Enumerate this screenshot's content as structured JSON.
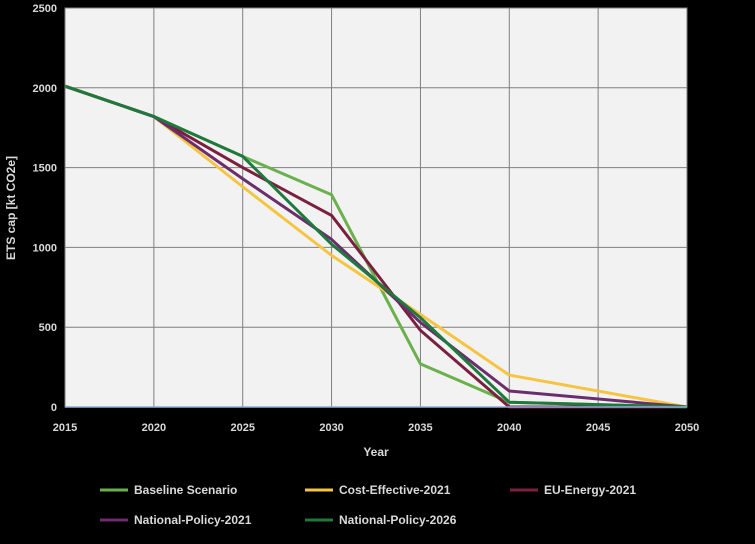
{
  "chart_data": {
    "type": "line",
    "title": "",
    "xlabel": "Year",
    "ylabel": "ETS cap [kt CO2e]",
    "x": [
      2015,
      2020,
      2025,
      2030,
      2035,
      2040,
      2045,
      2050
    ],
    "xlim": [
      2015,
      2050
    ],
    "ylim": [
      0,
      2500
    ],
    "x_ticks": [
      2015,
      2020,
      2025,
      2030,
      2035,
      2040,
      2045,
      2050
    ],
    "y_ticks": [
      0,
      500,
      1000,
      1500,
      2000,
      2500
    ],
    "grid": true,
    "legend_position": "bottom",
    "series": [
      {
        "name": "Baseline Scenario",
        "color": "#6ab04c",
        "x": [
          2015,
          2020,
          2025,
          2030,
          2035,
          2040,
          2050
        ],
        "values": [
          2010,
          1820,
          1570,
          1330,
          270,
          30,
          0
        ]
      },
      {
        "name": "Cost-Effective-2021",
        "color": "#f5c542",
        "x": [
          2015,
          2020,
          2025,
          2030,
          2035,
          2040,
          2050
        ],
        "values": [
          2010,
          1820,
          1380,
          950,
          580,
          200,
          0
        ]
      },
      {
        "name": "EU-Energy-2021",
        "color": "#7b1f3f",
        "x": [
          2015,
          2020,
          2025,
          2030,
          2035,
          2040,
          2050
        ],
        "values": [
          2010,
          1820,
          1500,
          1200,
          480,
          0,
          0
        ]
      },
      {
        "name": "National-Policy-2021",
        "color": "#6b2d6b",
        "x": [
          2015,
          2020,
          2025,
          2030,
          2035,
          2040,
          2050
        ],
        "values": [
          2010,
          1820,
          1430,
          1050,
          530,
          100,
          0
        ]
      },
      {
        "name": "National-Policy-2026",
        "color": "#1e7a3c",
        "x": [
          2015,
          2020,
          2025,
          2030,
          2035,
          2040,
          2050
        ],
        "values": [
          2010,
          1820,
          1570,
          1020,
          560,
          30,
          0
        ]
      }
    ]
  }
}
